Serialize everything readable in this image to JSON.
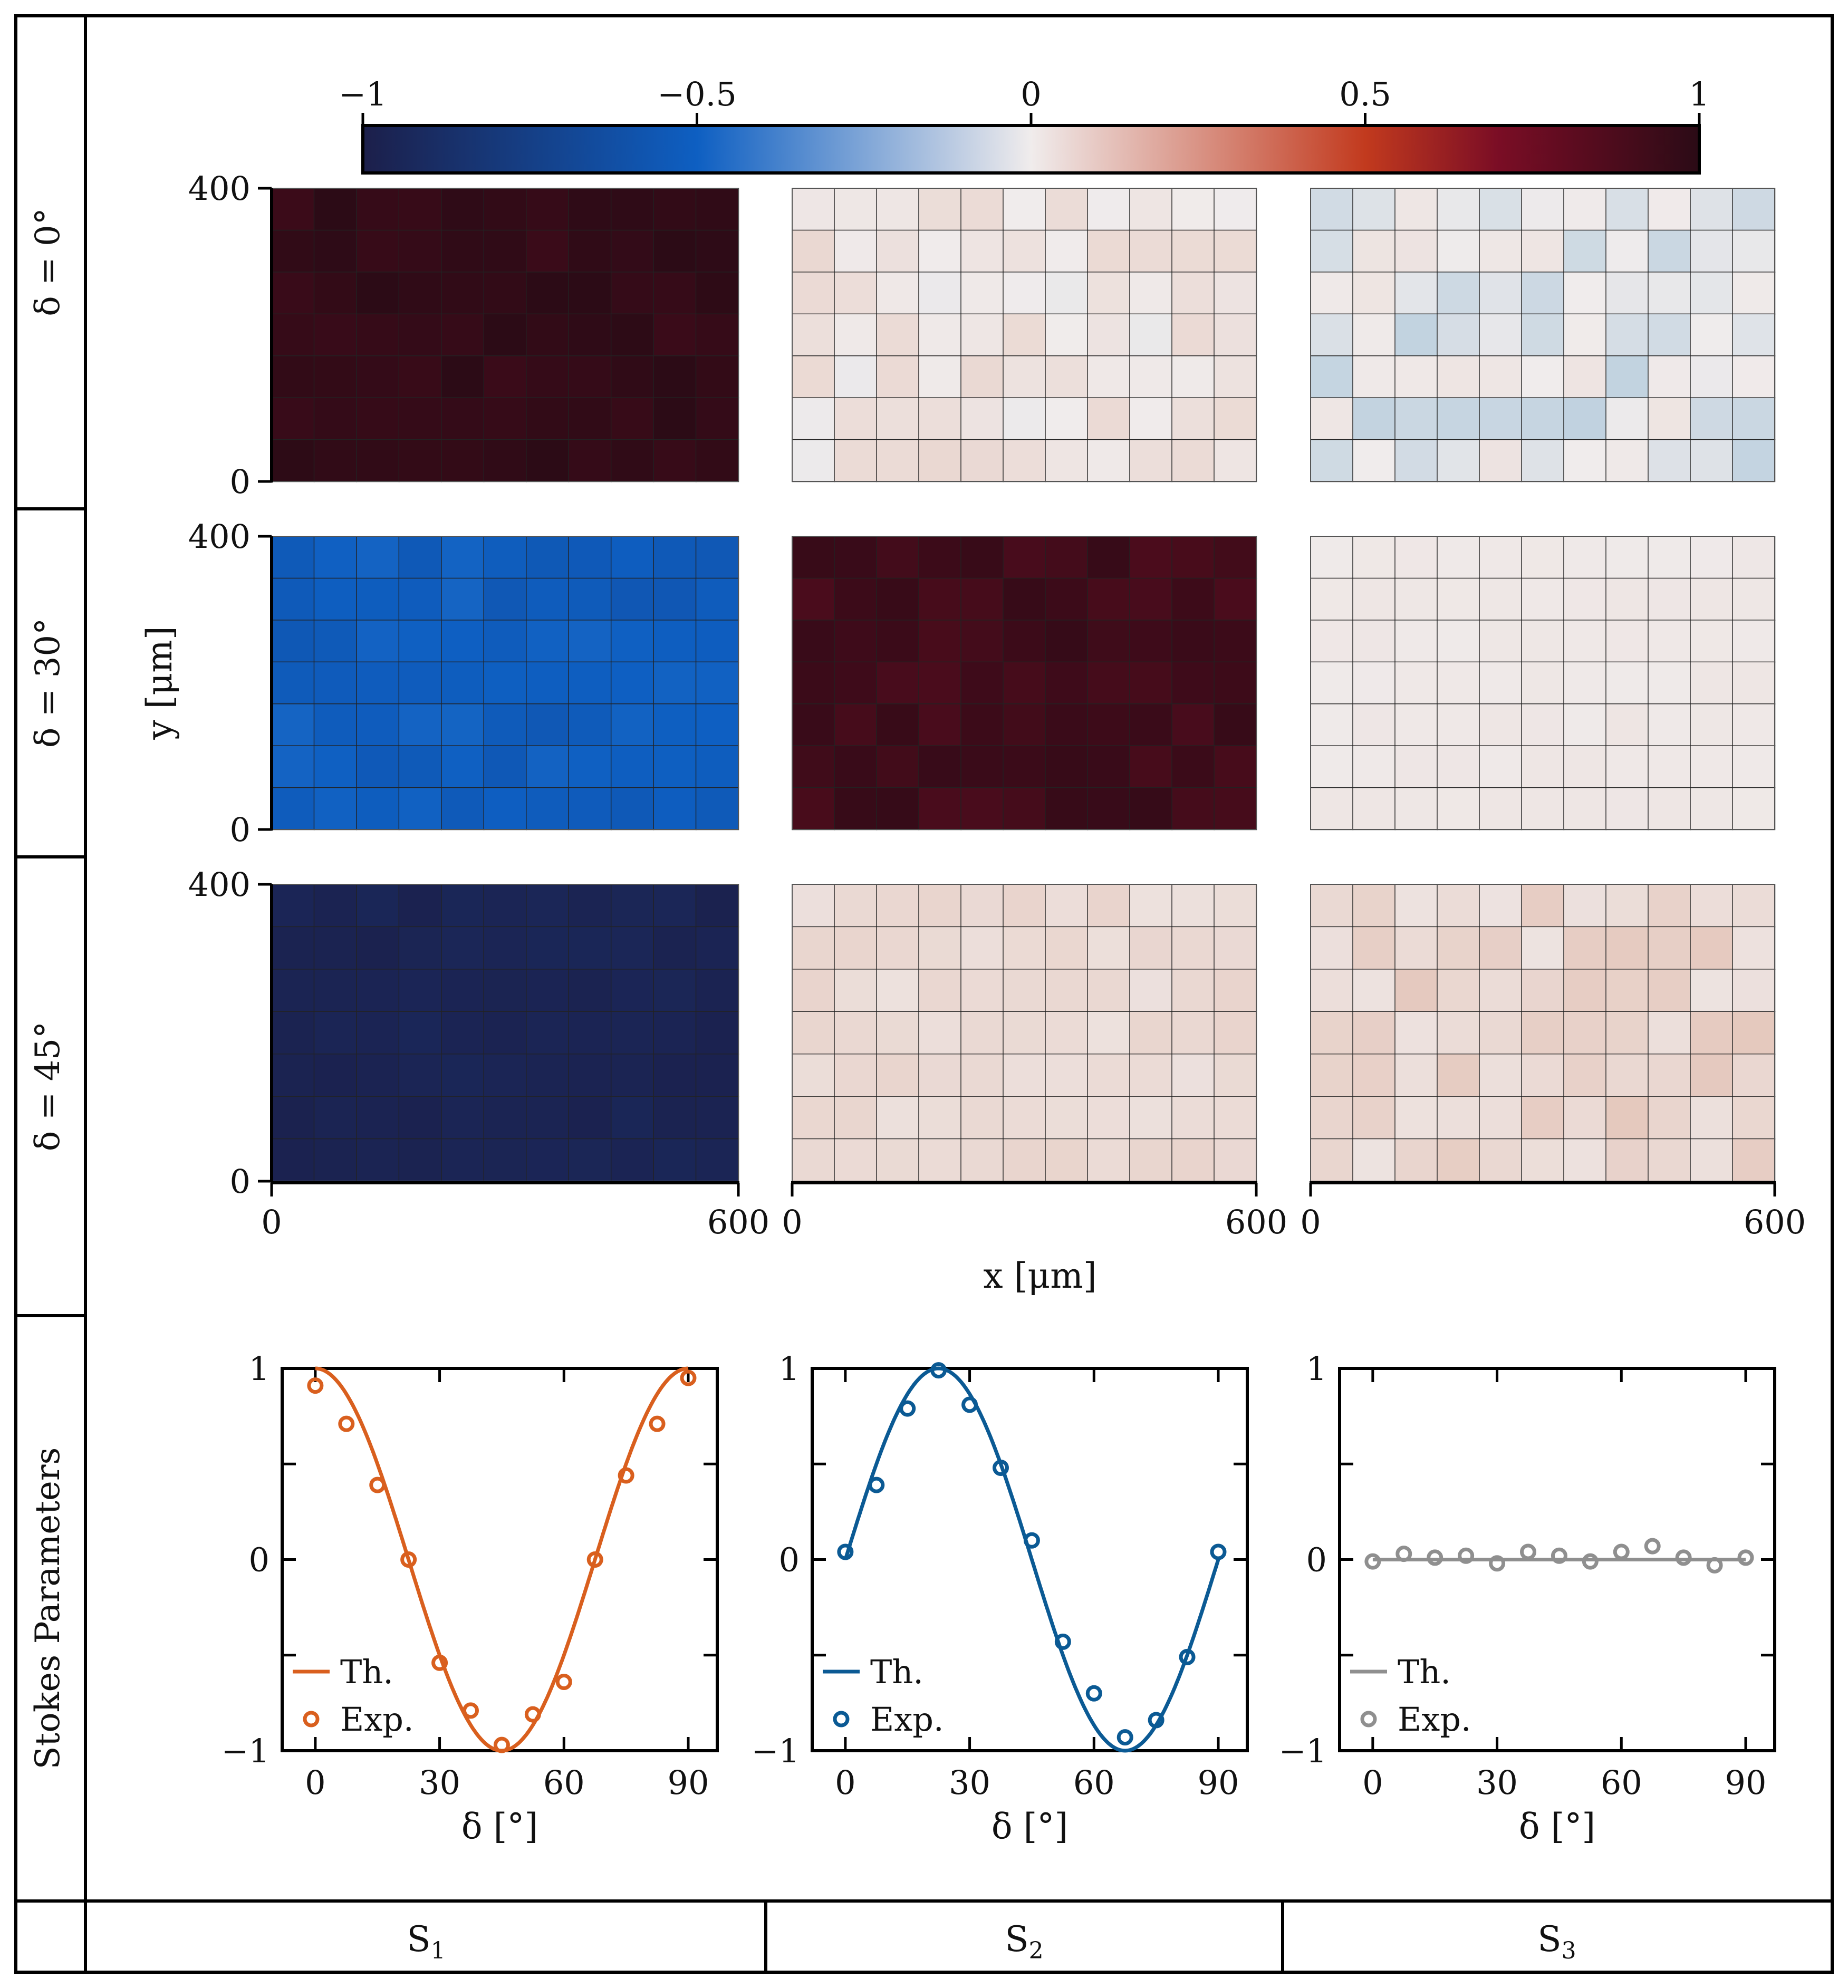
{
  "colorbar": {
    "ticks": [
      "−1",
      "−0.5",
      "0",
      "0.5",
      "1"
    ],
    "tick_values": [
      -1,
      -0.5,
      0,
      0.5,
      1
    ],
    "range": [
      -1,
      1
    ],
    "colors": [
      "#1c1f4a",
      "#0e5fc2",
      "#f0ecec",
      "#c23a1e",
      "#7a0d25",
      "#2b0b16"
    ]
  },
  "rows": [
    {
      "label": "δ = 0°"
    },
    {
      "label": "δ = 30°"
    },
    {
      "label": "δ = 45°"
    }
  ],
  "maps": {
    "grid": {
      "cols": 11,
      "rows": 7
    },
    "ylabel": "y [μm]",
    "xlabel": "x [μm]",
    "x_ticks": [
      "0",
      "600"
    ],
    "y_ticks": [
      "0",
      "400"
    ],
    "x_range": [
      0,
      600
    ],
    "y_range": [
      0,
      400
    ],
    "mean_values": [
      [
        0.97,
        0.04,
        -0.02
      ],
      [
        -0.52,
        0.92,
        0.02
      ],
      [
        -0.96,
        0.08,
        0.1
      ]
    ],
    "spread": [
      [
        0.03,
        0.05,
        0.06
      ],
      [
        0.04,
        0.04,
        0.01
      ],
      [
        0.02,
        0.03,
        0.06
      ]
    ]
  },
  "stokes_label": "Stokes Parameters",
  "columns": [
    {
      "main": "S",
      "sub": "1"
    },
    {
      "main": "S",
      "sub": "2"
    },
    {
      "main": "S",
      "sub": "3"
    }
  ],
  "chart_data": [
    {
      "type": "line",
      "title": "S1",
      "xlabel": "δ [°]",
      "ylabel": "",
      "xlim": [
        -8,
        97
      ],
      "ylim": [
        -1,
        1
      ],
      "x_ticks": [
        0,
        30,
        60,
        90
      ],
      "y_ticks": [
        -1,
        0,
        1
      ],
      "x_tick_labels": [
        "0",
        "30",
        "60",
        "90"
      ],
      "y_tick_labels": [
        "−1",
        "0",
        "1"
      ],
      "color": "#d95f1e",
      "legend": [
        "Th.",
        "Exp."
      ],
      "theory": "cos(4δ)",
      "series": [
        {
          "name": "Th.",
          "kind": "line",
          "expr": "cos(4δ)"
        },
        {
          "name": "Exp.",
          "kind": "scatter",
          "x": [
            0,
            7.5,
            15,
            22.5,
            30,
            37.5,
            45,
            52.5,
            60,
            67.5,
            75,
            82.5,
            90
          ],
          "y": [
            0.91,
            0.71,
            0.39,
            0.0,
            -0.54,
            -0.79,
            -0.97,
            -0.81,
            -0.64,
            0.0,
            0.44,
            0.71,
            0.95
          ]
        }
      ]
    },
    {
      "type": "line",
      "title": "S2",
      "xlabel": "δ [°]",
      "ylabel": "",
      "xlim": [
        -8,
        97
      ],
      "ylim": [
        -1,
        1
      ],
      "x_ticks": [
        0,
        30,
        60,
        90
      ],
      "y_ticks": [
        -1,
        0,
        1
      ],
      "x_tick_labels": [
        "0",
        "30",
        "60",
        "90"
      ],
      "y_tick_labels": [
        "−1",
        "0",
        "1"
      ],
      "color": "#0b5a94",
      "legend": [
        "Th.",
        "Exp."
      ],
      "theory": "sin(4δ)",
      "series": [
        {
          "name": "Th.",
          "kind": "line",
          "expr": "sin(4δ)"
        },
        {
          "name": "Exp.",
          "kind": "scatter",
          "x": [
            0,
            7.5,
            15,
            22.5,
            30,
            37.5,
            45,
            52.5,
            60,
            67.5,
            75,
            82.5,
            90
          ],
          "y": [
            0.04,
            0.39,
            0.79,
            0.99,
            0.81,
            0.48,
            0.1,
            -0.43,
            -0.7,
            -0.93,
            -0.84,
            -0.51,
            0.04
          ]
        }
      ]
    },
    {
      "type": "line",
      "title": "S3",
      "xlabel": "δ [°]",
      "ylabel": "",
      "xlim": [
        -8,
        97
      ],
      "ylim": [
        -1,
        1
      ],
      "x_ticks": [
        0,
        30,
        60,
        90
      ],
      "y_ticks": [
        -1,
        0,
        1
      ],
      "x_tick_labels": [
        "0",
        "30",
        "60",
        "90"
      ],
      "y_tick_labels": [
        "−1",
        "0",
        "1"
      ],
      "color": "#8f8f8f",
      "legend": [
        "Th.",
        "Exp."
      ],
      "theory": "0",
      "series": [
        {
          "name": "Th.",
          "kind": "line",
          "expr": "0"
        },
        {
          "name": "Exp.",
          "kind": "scatter",
          "x": [
            0,
            7.5,
            15,
            22.5,
            30,
            37.5,
            45,
            52.5,
            60,
            67.5,
            75,
            82.5,
            90
          ],
          "y": [
            -0.01,
            0.03,
            0.01,
            0.02,
            -0.02,
            0.04,
            0.02,
            -0.01,
            0.04,
            0.07,
            0.01,
            -0.03,
            0.01
          ]
        }
      ]
    }
  ]
}
